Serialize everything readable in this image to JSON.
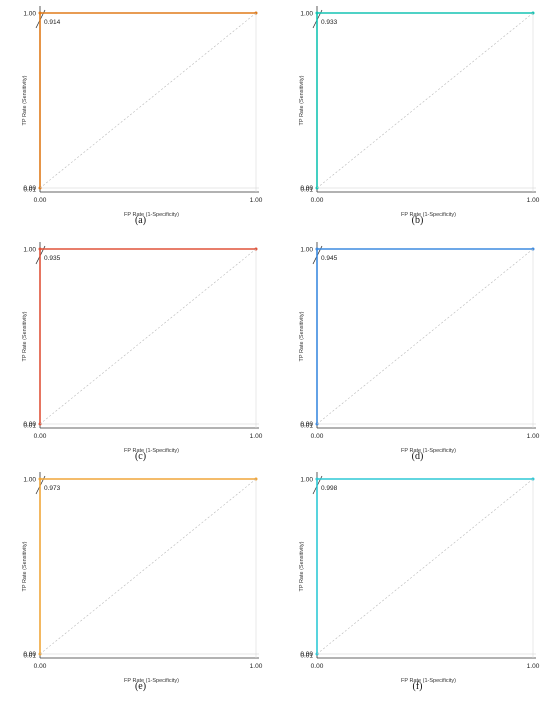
{
  "chart_data": [
    {
      "type": "line",
      "caption": "(a)",
      "auc_label": "0.914",
      "color": "#e07b1a",
      "xlabel": "FP Rate (1-Specificity)",
      "ylabel": "TP Rate (Sensitivity)",
      "x_ticks": [
        "0.00",
        "1.00"
      ],
      "y_ticks": [
        "0.00",
        "0.01",
        "1.00"
      ],
      "xlim": [
        0,
        1
      ],
      "ylim": [
        0,
        1
      ],
      "series": [
        {
          "x": [
            0.0,
            0.0,
            1.0
          ],
          "y": [
            0.0,
            1.0,
            1.0
          ]
        },
        {
          "style": "dashed",
          "x": [
            0,
            1
          ],
          "y": [
            0,
            1
          ]
        }
      ]
    },
    {
      "type": "line",
      "caption": "(b)",
      "auc_label": "0.933",
      "color": "#15c4b4",
      "xlabel": "FP Rate (1-Specificity)",
      "ylabel": "TP Rate (Sensitivity)",
      "x_ticks": [
        "0.00",
        "1.00"
      ],
      "y_ticks": [
        "0.00",
        "0.01",
        "1.00"
      ],
      "xlim": [
        0,
        1
      ],
      "ylim": [
        0,
        1
      ],
      "series": [
        {
          "x": [
            0.0,
            0.0,
            1.0
          ],
          "y": [
            0.0,
            1.0,
            1.0
          ]
        },
        {
          "style": "dashed",
          "x": [
            0,
            1
          ],
          "y": [
            0,
            1
          ]
        }
      ]
    },
    {
      "type": "line",
      "caption": "(c)",
      "auc_label": "0.935",
      "color": "#e0533a",
      "xlabel": "FP Rate (1-Specificity)",
      "ylabel": "TP Rate (Sensitivity)",
      "x_ticks": [
        "0.00",
        "1.00"
      ],
      "y_ticks": [
        "0.00",
        "0.01",
        "1.00"
      ],
      "xlim": [
        0,
        1
      ],
      "ylim": [
        0,
        1
      ],
      "series": [
        {
          "x": [
            0.0,
            0.0,
            1.0
          ],
          "y": [
            0.0,
            1.0,
            1.0
          ]
        },
        {
          "style": "dashed",
          "x": [
            0,
            1
          ],
          "y": [
            0,
            1
          ]
        }
      ]
    },
    {
      "type": "line",
      "caption": "(d)",
      "auc_label": "0.945",
      "color": "#3d8be0",
      "xlabel": "FP Rate (1-Specificity)",
      "ylabel": "TP Rate (Sensitivity)",
      "x_ticks": [
        "0.00",
        "1.00"
      ],
      "y_ticks": [
        "0.00",
        "0.01",
        "1.00"
      ],
      "xlim": [
        0,
        1
      ],
      "ylim": [
        0,
        1
      ],
      "series": [
        {
          "x": [
            0.0,
            0.0,
            1.0
          ],
          "y": [
            0.0,
            1.0,
            1.0
          ]
        },
        {
          "style": "dashed",
          "x": [
            0,
            1
          ],
          "y": [
            0,
            1
          ]
        }
      ]
    },
    {
      "type": "line",
      "caption": "(e)",
      "auc_label": "0.973",
      "color": "#f0a63a",
      "xlabel": "FP Rate (1-Specificity)",
      "ylabel": "TP Rate (Sensitivity)",
      "x_ticks": [
        "0.00",
        "1.00"
      ],
      "y_ticks": [
        "0.00",
        "0.01",
        "1.00"
      ],
      "xlim": [
        0,
        1
      ],
      "ylim": [
        0,
        1
      ],
      "series": [
        {
          "x": [
            0.0,
            0.0,
            1.0
          ],
          "y": [
            0.0,
            1.0,
            1.0
          ]
        },
        {
          "style": "dashed",
          "x": [
            0,
            1
          ],
          "y": [
            0,
            1
          ]
        }
      ]
    },
    {
      "type": "line",
      "caption": "(f)",
      "auc_label": "0.998",
      "color": "#2ec9d6",
      "xlabel": "FP Rate (1-Specificity)",
      "ylabel": "TP Rate (Sensitivity)",
      "x_ticks": [
        "0.00",
        "1.00"
      ],
      "y_ticks": [
        "0.00",
        "0.01",
        "1.00"
      ],
      "xlim": [
        0,
        1
      ],
      "ylim": [
        0,
        1
      ],
      "series": [
        {
          "x": [
            0.0,
            0.0,
            1.0
          ],
          "y": [
            0.0,
            1.0,
            1.0
          ]
        },
        {
          "style": "dashed",
          "x": [
            0,
            1
          ],
          "y": [
            0,
            1
          ]
        }
      ]
    }
  ]
}
